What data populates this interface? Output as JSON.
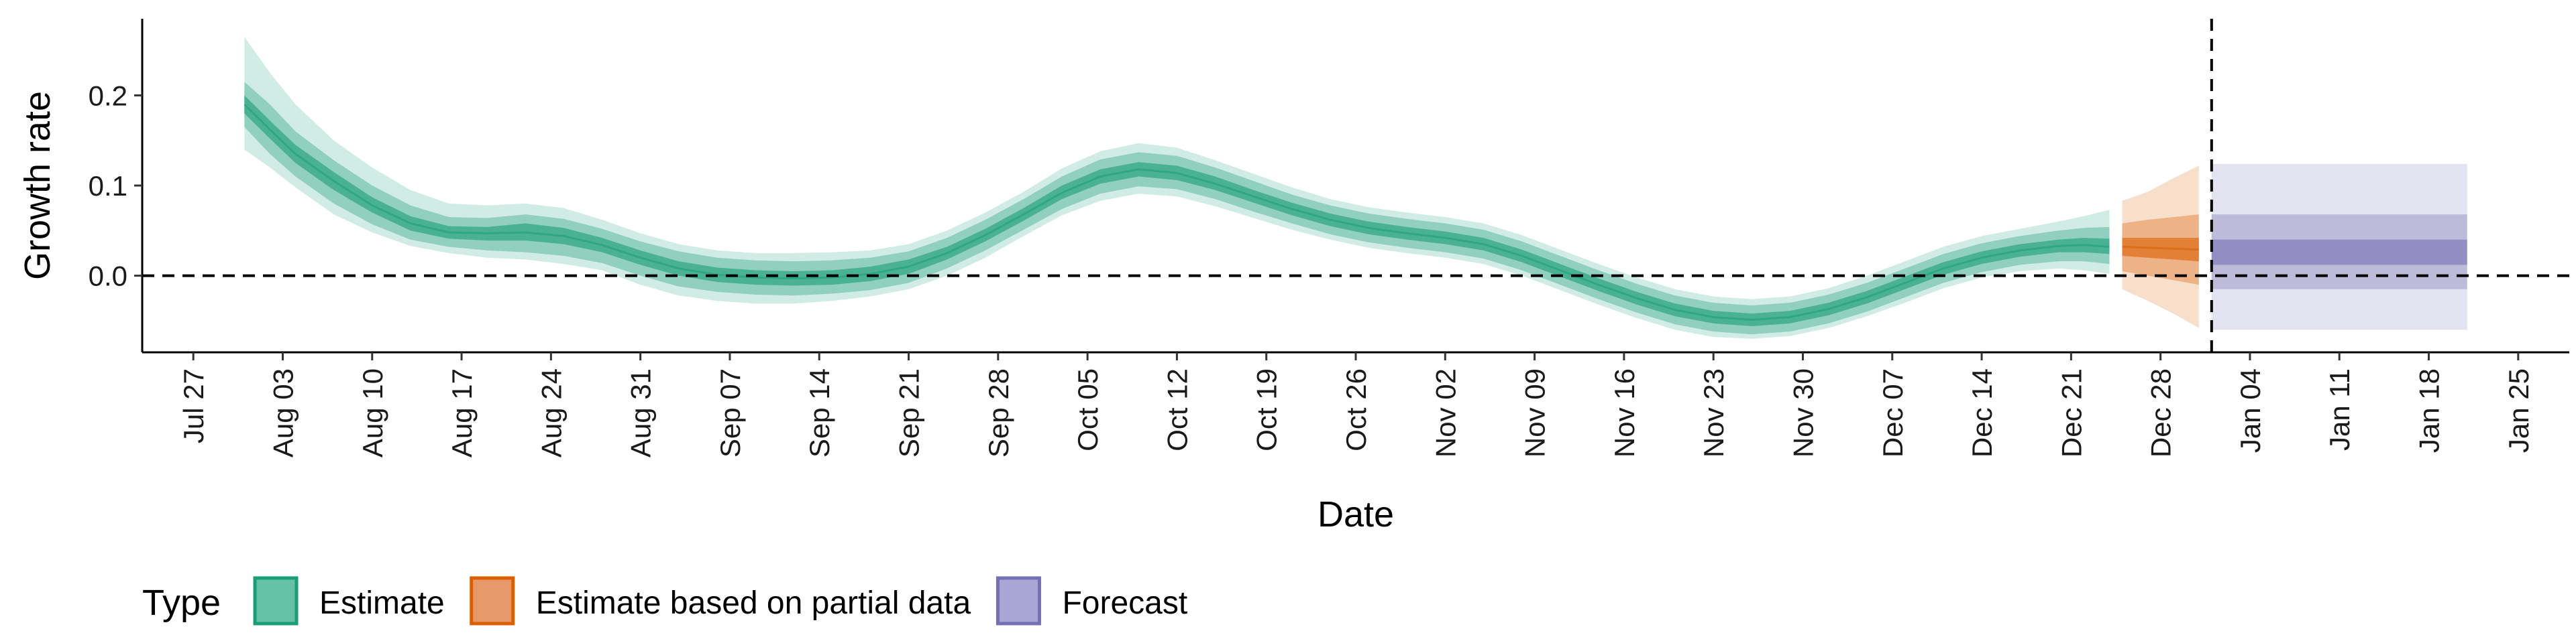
{
  "chart_data": {
    "type": "line",
    "xlabel": "Date",
    "ylabel": "Growth rate",
    "x_range": [
      "2020-07-23",
      "2021-01-29"
    ],
    "ylim": [
      -0.085,
      0.285
    ],
    "y_ticks": [
      0.0,
      0.1,
      0.2
    ],
    "y_tick_labels": [
      "0.0",
      "0.1",
      "0.2"
    ],
    "x_ticks": [
      "2020-07-27",
      "2020-08-03",
      "2020-08-10",
      "2020-08-17",
      "2020-08-24",
      "2020-08-31",
      "2020-09-07",
      "2020-09-14",
      "2020-09-21",
      "2020-09-28",
      "2020-10-05",
      "2020-10-12",
      "2020-10-19",
      "2020-10-26",
      "2020-11-02",
      "2020-11-09",
      "2020-11-16",
      "2020-11-23",
      "2020-11-30",
      "2020-12-07",
      "2020-12-14",
      "2020-12-21",
      "2020-12-28",
      "2021-01-04",
      "2021-01-11",
      "2021-01-18",
      "2021-01-25"
    ],
    "x_tick_labels": [
      "Jul 27",
      "Aug 03",
      "Aug 10",
      "Aug 17",
      "Aug 24",
      "Aug 31",
      "Sep 07",
      "Sep 14",
      "Sep 21",
      "Sep 28",
      "Oct 05",
      "Oct 12",
      "Oct 19",
      "Oct 26",
      "Nov 02",
      "Nov 09",
      "Nov 16",
      "Nov 23",
      "Nov 30",
      "Dec 07",
      "Dec 14",
      "Dec 21",
      "Dec 28",
      "Jan 04",
      "Jan 11",
      "Jan 18",
      "Jan 25"
    ],
    "reference_lines": {
      "horizontal_y": 0.0,
      "vertical_date": "2021-01-01",
      "style": "dashed"
    },
    "grid": false,
    "legend": {
      "position": "bottom-left",
      "title": "Type",
      "entries": [
        {
          "label": "Estimate",
          "fill": "#66c2a5",
          "stroke": "#1b9e77"
        },
        {
          "label": "Estimate based on partial data",
          "fill": "#e8996b",
          "stroke": "#d95f02"
        },
        {
          "label": "Forecast",
          "fill": "#a9a5d4",
          "stroke": "#7570b3"
        }
      ]
    },
    "series": [
      {
        "name": "Estimate",
        "color": "#1b9e77",
        "band_opacity": [
          0.2,
          0.35,
          0.6
        ],
        "points": [
          {
            "x": "2020-07-31",
            "median": 0.19,
            "lo50": 0.18,
            "hi50": 0.2,
            "lo90": 0.165,
            "hi90": 0.215,
            "lo95": 0.14,
            "hi95": 0.265
          },
          {
            "x": "2020-08-02",
            "median": 0.162,
            "lo50": 0.152,
            "hi50": 0.172,
            "lo90": 0.135,
            "hi90": 0.19,
            "lo95": 0.12,
            "hi95": 0.225
          },
          {
            "x": "2020-08-04",
            "median": 0.135,
            "lo50": 0.125,
            "hi50": 0.145,
            "lo90": 0.11,
            "hi90": 0.16,
            "lo95": 0.098,
            "hi95": 0.19
          },
          {
            "x": "2020-08-07",
            "median": 0.105,
            "lo50": 0.095,
            "hi50": 0.115,
            "lo90": 0.08,
            "hi90": 0.128,
            "lo95": 0.068,
            "hi95": 0.15
          },
          {
            "x": "2020-08-10",
            "median": 0.078,
            "lo50": 0.07,
            "hi50": 0.087,
            "lo90": 0.057,
            "hi90": 0.1,
            "lo95": 0.048,
            "hi95": 0.12
          },
          {
            "x": "2020-08-13",
            "median": 0.058,
            "lo50": 0.05,
            "hi50": 0.066,
            "lo90": 0.04,
            "hi90": 0.078,
            "lo95": 0.033,
            "hi95": 0.095
          },
          {
            "x": "2020-08-16",
            "median": 0.048,
            "lo50": 0.041,
            "hi50": 0.055,
            "lo90": 0.032,
            "hi90": 0.065,
            "lo95": 0.025,
            "hi95": 0.08
          },
          {
            "x": "2020-08-19",
            "median": 0.047,
            "lo50": 0.039,
            "hi50": 0.054,
            "lo90": 0.028,
            "hi90": 0.064,
            "lo95": 0.02,
            "hi95": 0.078
          },
          {
            "x": "2020-08-22",
            "median": 0.048,
            "lo50": 0.039,
            "hi50": 0.058,
            "lo90": 0.026,
            "hi90": 0.068,
            "lo95": 0.018,
            "hi95": 0.08
          },
          {
            "x": "2020-08-25",
            "median": 0.044,
            "lo50": 0.035,
            "hi50": 0.053,
            "lo90": 0.022,
            "hi90": 0.063,
            "lo95": 0.013,
            "hi95": 0.075
          },
          {
            "x": "2020-08-28",
            "median": 0.034,
            "lo50": 0.026,
            "hi50": 0.042,
            "lo90": 0.014,
            "hi90": 0.052,
            "lo95": 0.006,
            "hi95": 0.062
          },
          {
            "x": "2020-08-31",
            "median": 0.02,
            "lo50": 0.012,
            "hi50": 0.028,
            "lo90": 0.0,
            "hi90": 0.038,
            "lo95": -0.01,
            "hi95": 0.047
          },
          {
            "x": "2020-09-03",
            "median": 0.008,
            "lo50": 0.0,
            "hi50": 0.016,
            "lo90": -0.012,
            "hi90": 0.027,
            "lo95": -0.022,
            "hi95": 0.035
          },
          {
            "x": "2020-09-06",
            "median": 0.001,
            "lo50": -0.007,
            "hi50": 0.009,
            "lo90": -0.018,
            "hi90": 0.02,
            "lo95": -0.028,
            "hi95": 0.028
          },
          {
            "x": "2020-09-09",
            "median": -0.002,
            "lo50": -0.01,
            "hi50": 0.006,
            "lo90": -0.021,
            "hi90": 0.017,
            "lo95": -0.031,
            "hi95": 0.025
          },
          {
            "x": "2020-09-12",
            "median": -0.003,
            "lo50": -0.011,
            "hi50": 0.005,
            "lo90": -0.022,
            "hi90": 0.016,
            "lo95": -0.031,
            "hi95": 0.025
          },
          {
            "x": "2020-09-15",
            "median": -0.002,
            "lo50": -0.01,
            "hi50": 0.006,
            "lo90": -0.02,
            "hi90": 0.017,
            "lo95": -0.028,
            "hi95": 0.026
          },
          {
            "x": "2020-09-18",
            "median": 0.002,
            "lo50": -0.006,
            "hi50": 0.01,
            "lo90": -0.016,
            "hi90": 0.02,
            "lo95": -0.023,
            "hi95": 0.028
          },
          {
            "x": "2020-09-21",
            "median": 0.01,
            "lo50": 0.002,
            "hi50": 0.018,
            "lo90": -0.008,
            "hi90": 0.027,
            "lo95": -0.015,
            "hi95": 0.035
          },
          {
            "x": "2020-09-24",
            "median": 0.025,
            "lo50": 0.018,
            "hi50": 0.032,
            "lo90": 0.008,
            "hi90": 0.042,
            "lo95": 0.0,
            "hi95": 0.05
          },
          {
            "x": "2020-09-27",
            "median": 0.045,
            "lo50": 0.038,
            "hi50": 0.052,
            "lo90": 0.028,
            "hi90": 0.062,
            "lo95": 0.02,
            "hi95": 0.07
          },
          {
            "x": "2020-09-30",
            "median": 0.068,
            "lo50": 0.061,
            "hi50": 0.075,
            "lo90": 0.051,
            "hi90": 0.085,
            "lo95": 0.044,
            "hi95": 0.093
          },
          {
            "x": "2020-10-03",
            "median": 0.092,
            "lo50": 0.085,
            "hi50": 0.1,
            "lo90": 0.074,
            "hi90": 0.11,
            "lo95": 0.067,
            "hi95": 0.119
          },
          {
            "x": "2020-10-06",
            "median": 0.11,
            "lo50": 0.102,
            "hi50": 0.118,
            "lo90": 0.091,
            "hi90": 0.129,
            "lo95": 0.083,
            "hi95": 0.138
          },
          {
            "x": "2020-10-09",
            "median": 0.118,
            "lo50": 0.11,
            "hi50": 0.126,
            "lo90": 0.099,
            "hi90": 0.137,
            "lo95": 0.091,
            "hi95": 0.147
          },
          {
            "x": "2020-10-12",
            "median": 0.114,
            "lo50": 0.106,
            "hi50": 0.122,
            "lo90": 0.096,
            "hi90": 0.133,
            "lo95": 0.088,
            "hi95": 0.142
          },
          {
            "x": "2020-10-15",
            "median": 0.102,
            "lo50": 0.095,
            "hi50": 0.11,
            "lo90": 0.085,
            "hi90": 0.12,
            "lo95": 0.077,
            "hi95": 0.128
          },
          {
            "x": "2020-10-18",
            "median": 0.088,
            "lo50": 0.081,
            "hi50": 0.095,
            "lo90": 0.071,
            "hi90": 0.105,
            "lo95": 0.064,
            "hi95": 0.113
          },
          {
            "x": "2020-10-21",
            "median": 0.074,
            "lo50": 0.067,
            "hi50": 0.081,
            "lo90": 0.058,
            "hi90": 0.09,
            "lo95": 0.051,
            "hi95": 0.098
          },
          {
            "x": "2020-10-24",
            "median": 0.062,
            "lo50": 0.055,
            "hi50": 0.069,
            "lo90": 0.046,
            "hi90": 0.078,
            "lo95": 0.04,
            "hi95": 0.085
          },
          {
            "x": "2020-10-27",
            "median": 0.053,
            "lo50": 0.046,
            "hi50": 0.06,
            "lo90": 0.037,
            "hi90": 0.069,
            "lo95": 0.031,
            "hi95": 0.076
          },
          {
            "x": "2020-10-30",
            "median": 0.047,
            "lo50": 0.04,
            "hi50": 0.054,
            "lo90": 0.031,
            "hi90": 0.063,
            "lo95": 0.025,
            "hi95": 0.07
          },
          {
            "x": "2020-11-02",
            "median": 0.042,
            "lo50": 0.035,
            "hi50": 0.049,
            "lo90": 0.026,
            "hi90": 0.058,
            "lo95": 0.02,
            "hi95": 0.065
          },
          {
            "x": "2020-11-05",
            "median": 0.035,
            "lo50": 0.028,
            "hi50": 0.042,
            "lo90": 0.019,
            "hi90": 0.051,
            "lo95": 0.013,
            "hi95": 0.058
          },
          {
            "x": "2020-11-08",
            "median": 0.022,
            "lo50": 0.015,
            "hi50": 0.029,
            "lo90": 0.006,
            "hi90": 0.038,
            "lo95": 0.0,
            "hi95": 0.045
          },
          {
            "x": "2020-11-11",
            "median": 0.006,
            "lo50": -0.001,
            "hi50": 0.013,
            "lo90": -0.01,
            "hi90": 0.022,
            "lo95": -0.016,
            "hi95": 0.029
          },
          {
            "x": "2020-11-14",
            "median": -0.01,
            "lo50": -0.017,
            "hi50": -0.003,
            "lo90": -0.026,
            "hi90": 0.006,
            "lo95": -0.032,
            "hi95": 0.013
          },
          {
            "x": "2020-11-17",
            "median": -0.025,
            "lo50": -0.032,
            "hi50": -0.018,
            "lo90": -0.041,
            "hi90": -0.009,
            "lo95": -0.047,
            "hi95": -0.002
          },
          {
            "x": "2020-11-20",
            "median": -0.038,
            "lo50": -0.045,
            "hi50": -0.031,
            "lo90": -0.054,
            "hi90": -0.022,
            "lo95": -0.06,
            "hi95": -0.015
          },
          {
            "x": "2020-11-23",
            "median": -0.046,
            "lo50": -0.053,
            "hi50": -0.039,
            "lo90": -0.062,
            "hi90": -0.03,
            "lo95": -0.068,
            "hi95": -0.023
          },
          {
            "x": "2020-11-26",
            "median": -0.049,
            "lo50": -0.056,
            "hi50": -0.042,
            "lo90": -0.065,
            "hi90": -0.033,
            "lo95": -0.07,
            "hi95": -0.026
          },
          {
            "x": "2020-11-29",
            "median": -0.046,
            "lo50": -0.053,
            "hi50": -0.039,
            "lo90": -0.062,
            "hi90": -0.03,
            "lo95": -0.067,
            "hi95": -0.023
          },
          {
            "x": "2020-12-02",
            "median": -0.037,
            "lo50": -0.044,
            "hi50": -0.03,
            "lo90": -0.053,
            "hi90": -0.021,
            "lo95": -0.058,
            "hi95": -0.014
          },
          {
            "x": "2020-12-05",
            "median": -0.024,
            "lo50": -0.031,
            "hi50": -0.017,
            "lo90": -0.04,
            "hi90": -0.008,
            "lo95": -0.045,
            "hi95": 0.0
          },
          {
            "x": "2020-12-08",
            "median": -0.008,
            "lo50": -0.015,
            "hi50": -0.001,
            "lo90": -0.024,
            "hi90": 0.008,
            "lo95": -0.03,
            "hi95": 0.016
          },
          {
            "x": "2020-12-11",
            "median": 0.008,
            "lo50": 0.001,
            "hi50": 0.015,
            "lo90": -0.008,
            "hi90": 0.024,
            "lo95": -0.014,
            "hi95": 0.032
          },
          {
            "x": "2020-12-14",
            "median": 0.02,
            "lo50": 0.013,
            "hi50": 0.027,
            "lo90": 0.004,
            "hi90": 0.036,
            "lo95": -0.002,
            "hi95": 0.044
          },
          {
            "x": "2020-12-17",
            "median": 0.028,
            "lo50": 0.021,
            "hi50": 0.035,
            "lo90": 0.012,
            "hi90": 0.044,
            "lo95": 0.005,
            "hi95": 0.052
          },
          {
            "x": "2020-12-20",
            "median": 0.033,
            "lo50": 0.026,
            "hi50": 0.04,
            "lo90": 0.016,
            "hi90": 0.05,
            "lo95": 0.008,
            "hi95": 0.06
          },
          {
            "x": "2020-12-22",
            "median": 0.034,
            "lo50": 0.026,
            "hi50": 0.042,
            "lo90": 0.016,
            "hi90": 0.053,
            "lo95": 0.006,
            "hi95": 0.066
          },
          {
            "x": "2020-12-24",
            "median": 0.032,
            "lo50": 0.024,
            "hi50": 0.041,
            "lo90": 0.013,
            "hi90": 0.054,
            "lo95": 0.002,
            "hi95": 0.073
          }
        ]
      },
      {
        "name": "Estimate based on partial data",
        "color": "#d95f02",
        "band_opacity": [
          0.2,
          0.35,
          0.6
        ],
        "points": [
          {
            "x": "2020-12-25",
            "median": 0.032,
            "lo50": 0.022,
            "hi50": 0.042,
            "lo90": 0.005,
            "hi90": 0.058,
            "lo95": -0.015,
            "hi95": 0.083
          },
          {
            "x": "2020-12-27",
            "median": 0.031,
            "lo50": 0.02,
            "hi50": 0.042,
            "lo90": 0.0,
            "hi90": 0.062,
            "lo95": -0.028,
            "hi95": 0.093
          },
          {
            "x": "2020-12-29",
            "median": 0.03,
            "lo50": 0.018,
            "hi50": 0.042,
            "lo90": -0.005,
            "hi90": 0.065,
            "lo95": -0.042,
            "hi95": 0.108
          },
          {
            "x": "2020-12-31",
            "median": 0.029,
            "lo50": 0.016,
            "hi50": 0.042,
            "lo90": -0.01,
            "hi90": 0.068,
            "lo95": -0.058,
            "hi95": 0.122
          }
        ]
      },
      {
        "name": "Forecast",
        "color": "#7570b3",
        "band_opacity": [
          0.2,
          0.35,
          0.6
        ],
        "points": [
          {
            "x": "2021-01-01",
            "median": 0.026,
            "lo50": 0.012,
            "hi50": 0.04,
            "lo90": -0.015,
            "hi90": 0.068,
            "lo95": -0.06,
            "hi95": 0.124
          },
          {
            "x": "2021-01-21",
            "median": 0.026,
            "lo50": 0.012,
            "hi50": 0.04,
            "lo90": -0.015,
            "hi90": 0.068,
            "lo95": -0.06,
            "hi95": 0.124
          }
        ]
      }
    ]
  }
}
